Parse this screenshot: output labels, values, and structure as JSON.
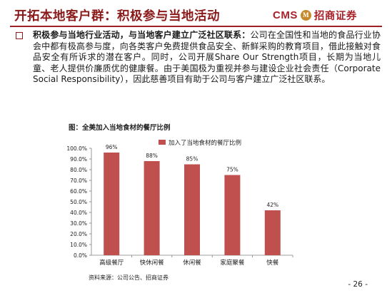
{
  "header": {
    "title": "开拓本地客户群：积极参与当地活动",
    "logo_text": "CMS",
    "logo_mark": "M",
    "logo_name": "招商证券"
  },
  "body": {
    "lead": "积极参与当地行业活动，与当地客户建立广泛社区联系：",
    "text": "公司在全国性和当地的食品行业协会中都有极高参与度，向各类客户免费提供食品安全、新鲜采购的教育项目，借此接触对食品安全有所诉求的潜在客户。同时，公司开展Share Our Strength项目，长期为当地儿童、老人提供价廉质优的健康餐。由于美国极为重视并参与建设企业社会责任（Corporate Social Responsibility），因此慈善项目有助于公司与客户建立广泛社区联系。"
  },
  "figure": {
    "title": "图：全美加入当地食材的餐厅比例",
    "source": "资料来源：公司公告、招商证券"
  },
  "page_number": "- 26 -",
  "colors": {
    "accent": "#8b1a1a",
    "bar": "#c0504d"
  },
  "chart_data": {
    "type": "bar",
    "categories": [
      "高级餐厅",
      "快休闲餐",
      "休闲餐",
      "家庭聚餐",
      "快餐"
    ],
    "values": [
      96,
      88,
      85,
      75,
      42
    ],
    "value_labels": [
      "96%",
      "88%",
      "85%",
      "75%",
      "42%"
    ],
    "legend": "加入了当地食材的餐厅比例",
    "legend_position": "top",
    "ylim": [
      0,
      100
    ],
    "yticks": [
      0,
      10,
      20,
      30,
      40,
      50,
      60,
      70,
      80,
      90,
      100
    ],
    "ytick_labels": [
      "0.0%",
      "10.0%",
      "20.0%",
      "30.0%",
      "40.0%",
      "50.0%",
      "60.0%",
      "70.0%",
      "80.0%",
      "90.0%",
      "100.0%"
    ],
    "grid": false
  }
}
